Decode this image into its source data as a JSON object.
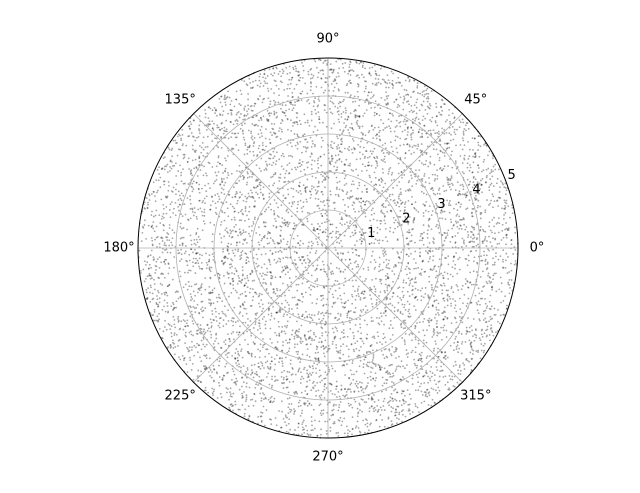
{
  "chart_data": {
    "type": "scatter",
    "projection": "polar",
    "title": "",
    "angular_ticks": [
      {
        "deg": 0,
        "label": "0°"
      },
      {
        "deg": 45,
        "label": "45°"
      },
      {
        "deg": 90,
        "label": "90°"
      },
      {
        "deg": 135,
        "label": "135°"
      },
      {
        "deg": 180,
        "label": "180°"
      },
      {
        "deg": 225,
        "label": "225°"
      },
      {
        "deg": 270,
        "label": "270°"
      },
      {
        "deg": 315,
        "label": "315°"
      }
    ],
    "radial_ticks": [
      {
        "r": 1,
        "label": "1"
      },
      {
        "r": 2,
        "label": "2"
      },
      {
        "r": 3,
        "label": "3"
      },
      {
        "r": 4,
        "label": "4"
      },
      {
        "r": 5,
        "label": "5"
      }
    ],
    "rlim": [
      0,
      5
    ],
    "radial_label_angle_deg": 22.5,
    "grid": true,
    "series": [
      {
        "count": 6000,
        "distribution": "uniform over disk, theta in [0, 360) deg, r in [0, 5]",
        "marker": "dot",
        "alpha": 0.35
      }
    ],
    "colors": {
      "points": "#000000",
      "grid": "#b0b0b0",
      "frame": "#000000"
    }
  }
}
